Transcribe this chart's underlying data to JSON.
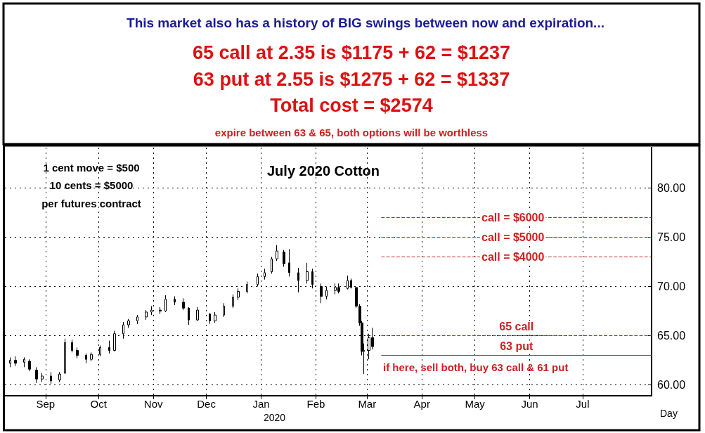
{
  "chart_data": {
    "type": "candlestick",
    "title": "July 2020 Cotton",
    "xlabel": "Day",
    "annotations": [
      {
        "text": "This market also has a history of BIG swings between now and expiration..."
      },
      {
        "text": "65 call at 2.35 is $1175 + 62 = $1237"
      },
      {
        "text": "63 put at 2.55 is $1275 + 62 = $1337"
      },
      {
        "text": "Total cost = $2574"
      },
      {
        "text": "expire between 63 & 65, both options will be worthless"
      },
      {
        "text": "1 cent move = $500"
      },
      {
        "text": "10 cents = $5000"
      },
      {
        "text": "per futures contract"
      },
      {
        "text": "if here, sell both, buy 63 call & 61 put"
      },
      "2020",
      {
        "text": "call = $6000",
        "y": 77
      },
      {
        "text": "call = $5000",
        "y": 75
      },
      {
        "text": "call = $4000",
        "y": 73
      }
    ],
    "x": [
      "2019-08-12",
      "2019-08-15",
      "2019-08-20",
      "2019-08-23",
      "2019-08-27",
      "2019-08-30",
      "2019-09-04",
      "2019-09-09",
      "2019-09-12",
      "2019-09-16",
      "2019-09-19",
      "2019-09-24",
      "2019-09-27",
      "2019-10-02",
      "2019-10-07",
      "2019-10-10",
      "2019-10-15",
      "2019-10-18",
      "2019-10-23",
      "2019-10-28",
      "2019-10-31",
      "2019-11-05",
      "2019-11-08",
      "2019-11-13",
      "2019-11-18",
      "2019-11-21",
      "2019-11-26",
      "2019-12-03",
      "2019-12-06",
      "2019-12-11",
      "2019-12-16",
      "2019-12-19",
      "2019-12-24",
      "2019-12-30",
      "2020-01-03",
      "2020-01-07",
      "2020-01-10",
      "2020-01-14",
      "2020-01-17",
      "2020-01-22",
      "2020-01-27",
      "2020-01-30",
      "2020-02-04",
      "2020-02-07",
      "2020-02-12",
      "2020-02-14",
      "2020-02-19",
      "2020-02-21",
      "2020-02-24",
      "2020-02-26",
      "2020-02-27",
      "2020-02-28",
      "2020-03-02",
      "2020-03-04"
    ],
    "ohlc": [
      [
        62.2,
        62.8,
        61.8,
        62.5
      ],
      [
        62.5,
        62.9,
        61.9,
        62.2
      ],
      [
        62.3,
        62.8,
        61.8,
        62.6
      ],
      [
        62.4,
        62.6,
        61.4,
        61.6
      ],
      [
        61.5,
        61.8,
        60.2,
        60.6
      ],
      [
        60.6,
        61.2,
        60.3,
        60.9
      ],
      [
        60.9,
        61.3,
        60.1,
        60.4
      ],
      [
        60.5,
        61.3,
        60.3,
        61.1
      ],
      [
        61.2,
        64.7,
        61.1,
        64.3
      ],
      [
        64.3,
        64.6,
        63.3,
        63.5
      ],
      [
        63.5,
        63.8,
        62.7,
        63.0
      ],
      [
        63.0,
        63.2,
        62.2,
        62.6
      ],
      [
        62.6,
        63.3,
        62.4,
        63.1
      ],
      [
        63.1,
        64.0,
        62.9,
        63.8
      ],
      [
        63.8,
        64.5,
        63.2,
        63.5
      ],
      [
        63.5,
        65.5,
        63.4,
        65.2
      ],
      [
        65.2,
        66.4,
        64.7,
        66.1
      ],
      [
        66.1,
        66.7,
        65.8,
        66.5
      ],
      [
        66.5,
        67.1,
        66.2,
        66.9
      ],
      [
        66.9,
        67.6,
        66.6,
        67.4
      ],
      [
        67.4,
        68.0,
        67.1,
        67.6
      ],
      [
        67.6,
        67.9,
        67.2,
        67.5
      ],
      [
        67.5,
        69.1,
        67.4,
        68.7
      ],
      [
        68.7,
        69.0,
        68.1,
        68.4
      ],
      [
        68.4,
        68.8,
        67.6,
        67.8
      ],
      [
        67.8,
        67.9,
        66.1,
        66.6
      ],
      [
        66.6,
        67.9,
        66.5,
        67.6
      ],
      [
        67.2,
        67.3,
        66.2,
        66.5
      ],
      [
        66.5,
        67.4,
        66.3,
        67.1
      ],
      [
        67.1,
        68.3,
        66.9,
        68.0
      ],
      [
        68.0,
        69.2,
        67.8,
        68.9
      ],
      [
        68.9,
        69.8,
        68.6,
        69.5
      ],
      [
        69.5,
        70.5,
        69.3,
        70.2
      ],
      [
        70.2,
        71.3,
        70.0,
        71.0
      ],
      [
        71.0,
        71.8,
        70.7,
        71.4
      ],
      [
        71.5,
        73.0,
        71.3,
        72.8
      ],
      [
        72.8,
        74.2,
        72.6,
        73.6
      ],
      [
        73.5,
        73.7,
        72.0,
        72.3
      ],
      [
        72.4,
        73.8,
        71.0,
        71.4
      ],
      [
        71.4,
        71.9,
        69.4,
        70.6
      ],
      [
        70.6,
        72.4,
        70.3,
        71.5
      ],
      [
        71.5,
        71.8,
        69.8,
        70.2
      ],
      [
        70.0,
        70.3,
        68.3,
        69.0
      ],
      [
        69.0,
        70.0,
        68.7,
        69.6
      ],
      [
        69.6,
        70.3,
        69.2,
        69.9
      ],
      [
        69.9,
        70.3,
        69.3,
        69.5
      ],
      [
        69.8,
        71.1,
        69.7,
        70.6
      ],
      [
        70.6,
        70.8,
        69.8,
        69.9
      ],
      [
        69.9,
        69.9,
        67.8,
        68.0
      ],
      [
        68.0,
        68.2,
        66.0,
        66.3
      ],
      [
        66.3,
        66.5,
        63.0,
        63.4
      ],
      [
        63.4,
        64.2,
        61.1,
        63.5
      ],
      [
        63.5,
        65.2,
        62.6,
        64.8
      ],
      [
        64.8,
        65.8,
        63.6,
        63.9
      ]
    ],
    "color": "#000000",
    "xlim": [
      "2019-08-09",
      "2020-08-09"
    ],
    "xticks": [
      {
        "value": "2019-09-01",
        "label": "Sep"
      },
      {
        "value": "2019-10-01",
        "label": "Oct"
      },
      {
        "value": "2019-11-01",
        "label": "Nov"
      },
      {
        "value": "2019-12-01",
        "label": "Dec"
      },
      {
        "value": "2020-01-01",
        "label": "Jan"
      },
      {
        "value": "2020-02-01",
        "label": "Feb"
      },
      {
        "value": "2020-03-01",
        "label": "Mar"
      },
      {
        "value": "2020-04-01",
        "label": "Apr"
      },
      {
        "value": "2020-05-01",
        "label": "May"
      },
      {
        "value": "2020-06-01",
        "label": "Jun"
      },
      {
        "value": "2020-07-01",
        "label": "Jul"
      }
    ],
    "ylim": [
      58.9,
      84.1
    ],
    "yticks": [
      {
        "value": 60,
        "label": "60.00"
      },
      {
        "value": 65,
        "label": "65.00"
      },
      {
        "value": 70,
        "label": "70.00"
      },
      {
        "value": 75,
        "label": "75.00"
      },
      {
        "value": 80,
        "label": "80.00"
      }
    ],
    "ref_lines": [
      {
        "axis": "y",
        "value": 77,
        "color": "#cc2222",
        "line_style": "dashed"
      },
      {
        "axis": "y",
        "value": 75,
        "color": "#cc2222",
        "line_style": "dashed"
      },
      {
        "axis": "y",
        "value": 73,
        "color": "#cc2222",
        "line_style": "dashed"
      },
      {
        "axis": "y",
        "value": 65,
        "label": "65 call",
        "color": "#cc2222",
        "line_style": "dashed"
      },
      {
        "axis": "y",
        "value": 63,
        "label": "63 put",
        "color": "#cc2222",
        "line_style": "solid"
      }
    ],
    "grid": true
  }
}
